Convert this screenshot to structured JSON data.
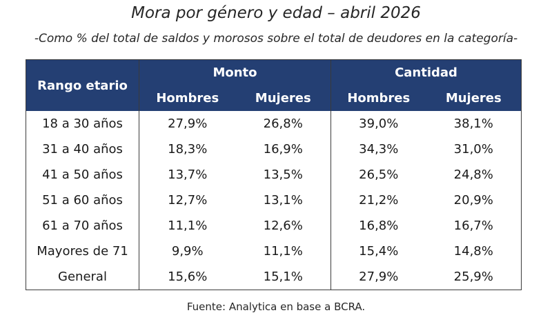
{
  "title": "Mora por género y edad – abril 2026",
  "subtitle": "-Como % del total de saldos y morosos sobre el total de deudores en la categoría-",
  "table": {
    "row_header": "Rango etario",
    "groups": [
      "Monto",
      "Cantidad"
    ],
    "subheaders": [
      "Hombres",
      "Mujeres",
      "Hombres",
      "Mujeres"
    ],
    "rows": [
      {
        "label": "18 a 30 años",
        "values": [
          "27,9%",
          "26,8%",
          "39,0%",
          "38,1%"
        ]
      },
      {
        "label": "31 a 40 años",
        "values": [
          "18,3%",
          "16,9%",
          "34,3%",
          "31,0%"
        ]
      },
      {
        "label": "41 a 50 años",
        "values": [
          "13,7%",
          "13,5%",
          "26,5%",
          "24,8%"
        ]
      },
      {
        "label": "51 a 60 años",
        "values": [
          "12,7%",
          "13,1%",
          "21,2%",
          "20,9%"
        ]
      },
      {
        "label": "61 a 70 años",
        "values": [
          "11,1%",
          "12,6%",
          "16,8%",
          "16,7%"
        ]
      },
      {
        "label": "Mayores de 71",
        "values": [
          "9,9%",
          "11,1%",
          "15,4%",
          "14,8%"
        ]
      },
      {
        "label": "General",
        "values": [
          "15,6%",
          "15,1%",
          "27,9%",
          "25,9%"
        ]
      }
    ]
  },
  "source": "Fuente: Analytica en base a BCRA.",
  "colors": {
    "header_bg": "#243f73",
    "header_text": "#ffffff"
  }
}
